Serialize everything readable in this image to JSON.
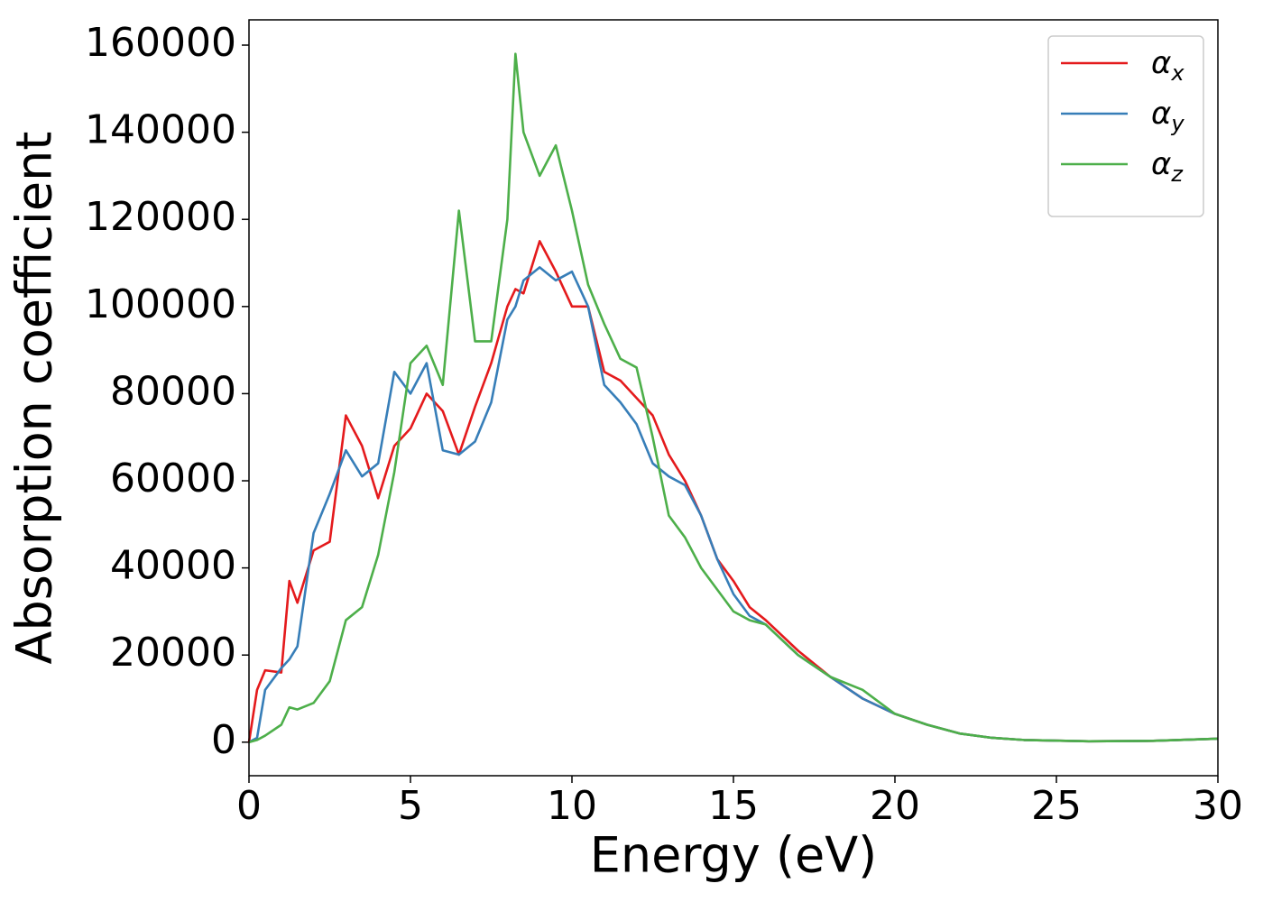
{
  "chart_data": {
    "type": "line",
    "x_label": "Energy (eV)",
    "y_label": "Absorption coefficient",
    "xlim": [
      0,
      30
    ],
    "ylim": [
      -7700,
      165800
    ],
    "xticks": [
      0,
      5,
      10,
      15,
      20,
      25,
      30
    ],
    "yticks": [
      0,
      20000,
      40000,
      60000,
      80000,
      100000,
      120000,
      140000,
      160000
    ],
    "grid": false,
    "legend": "upper right",
    "x": [
      0,
      0.25,
      0.5,
      1,
      1.25,
      1.5,
      2,
      2.5,
      3,
      3.5,
      4,
      4.5,
      5,
      5.5,
      6,
      6.5,
      7,
      7.5,
      8,
      8.25,
      8.5,
      9,
      9.5,
      10,
      10.5,
      11,
      11.5,
      12,
      12.5,
      13,
      13.5,
      14,
      14.5,
      15,
      15.5,
      16,
      17,
      18,
      19,
      20,
      21,
      22,
      23,
      24,
      26,
      28,
      30
    ],
    "series": [
      {
        "name": "αx",
        "color": "#e41a1c",
        "values": [
          0,
          12000,
          16500,
          16000,
          37000,
          32000,
          44000,
          46000,
          75000,
          68000,
          56000,
          68000,
          72000,
          80000,
          76000,
          66000,
          77000,
          87000,
          100000,
          104000,
          103000,
          115000,
          108000,
          100000,
          100000,
          85000,
          83000,
          79000,
          75000,
          66000,
          60000,
          52000,
          42000,
          37000,
          31000,
          28000,
          21000,
          15000,
          10000,
          6500,
          4000,
          2000,
          1000,
          500,
          200,
          300,
          800
        ]
      },
      {
        "name": "αy",
        "color": "#377eb8",
        "values": [
          0,
          1000,
          12000,
          17000,
          19000,
          22000,
          48000,
          57000,
          67000,
          61000,
          64000,
          85000,
          80000,
          87000,
          67000,
          66000,
          69000,
          78000,
          97000,
          100000,
          106000,
          109000,
          106000,
          108000,
          100000,
          82000,
          78000,
          73000,
          64000,
          61000,
          59000,
          52000,
          42000,
          34000,
          29000,
          27000,
          20000,
          15000,
          10000,
          6500,
          4000,
          2000,
          1000,
          500,
          200,
          300,
          800
        ]
      },
      {
        "name": "αz",
        "color": "#4daf4a",
        "values": [
          0,
          500,
          1500,
          4000,
          8000,
          7500,
          9000,
          14000,
          28000,
          31000,
          43000,
          62000,
          87000,
          91000,
          82000,
          122000,
          92000,
          92000,
          120000,
          158000,
          140000,
          130000,
          137000,
          122000,
          105000,
          96000,
          88000,
          86000,
          70000,
          52000,
          47000,
          40000,
          35000,
          30000,
          28000,
          27000,
          20000,
          15000,
          12000,
          6500,
          4000,
          2000,
          1000,
          500,
          200,
          300,
          800
        ]
      }
    ]
  }
}
